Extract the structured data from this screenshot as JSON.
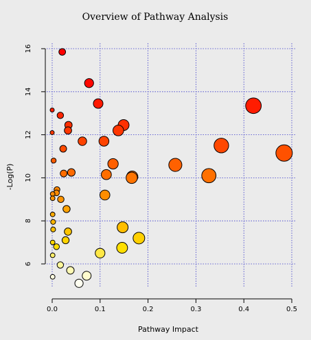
{
  "chart_data": {
    "type": "scatter",
    "title": "Overview of Pathway Analysis",
    "xlabel": "Pathway Impact",
    "ylabel": "-Log(P)",
    "xlim": [
      0,
      0.5
    ],
    "ylim": [
      4.9,
      16
    ],
    "xticks": [
      0.0,
      0.1,
      0.2,
      0.3,
      0.4,
      0.5
    ],
    "xtick_labels": [
      "0.0",
      "0.1",
      "0.2",
      "0.3",
      "0.4",
      "0.5"
    ],
    "yticks": [
      6,
      8,
      10,
      12,
      14,
      16
    ],
    "ytick_labels": [
      "6",
      "8",
      "10",
      "12",
      "14",
      "16"
    ],
    "grid": true,
    "encoding": "point size reflects pathway impact; color shades from red (high -log(p)) to white (low -log(p))",
    "points": [
      {
        "x": 0.021,
        "y": 15.85,
        "color": "#ff0000"
      },
      {
        "x": 0.077,
        "y": 14.4,
        "color": "#ff0800"
      },
      {
        "x": 0.096,
        "y": 13.45,
        "color": "#ff1900"
      },
      {
        "x": 0.42,
        "y": 13.35,
        "color": "#ff1c00"
      },
      {
        "x": 0.0,
        "y": 13.15,
        "color": "#ff1f00"
      },
      {
        "x": 0.017,
        "y": 12.9,
        "color": "#ff2500"
      },
      {
        "x": 0.034,
        "y": 12.45,
        "color": "#ff3000"
      },
      {
        "x": 0.149,
        "y": 12.45,
        "color": "#ff3000"
      },
      {
        "x": 0.033,
        "y": 12.2,
        "color": "#ff3600"
      },
      {
        "x": 0.138,
        "y": 12.2,
        "color": "#ff3600"
      },
      {
        "x": 0.0,
        "y": 12.1,
        "color": "#ff3800"
      },
      {
        "x": 0.063,
        "y": 11.7,
        "color": "#ff4300"
      },
      {
        "x": 0.108,
        "y": 11.7,
        "color": "#ff4300"
      },
      {
        "x": 0.353,
        "y": 11.5,
        "color": "#ff4800"
      },
      {
        "x": 0.023,
        "y": 11.35,
        "color": "#ff4c00"
      },
      {
        "x": 0.484,
        "y": 11.15,
        "color": "#ff5100"
      },
      {
        "x": 0.003,
        "y": 10.8,
        "color": "#ff5b00"
      },
      {
        "x": 0.127,
        "y": 10.65,
        "color": "#ff5f00"
      },
      {
        "x": 0.257,
        "y": 10.6,
        "color": "#ff6100"
      },
      {
        "x": 0.04,
        "y": 10.25,
        "color": "#ff6a00"
      },
      {
        "x": 0.024,
        "y": 10.2,
        "color": "#ff6c00"
      },
      {
        "x": 0.113,
        "y": 10.15,
        "color": "#ff6e00"
      },
      {
        "x": 0.327,
        "y": 10.1,
        "color": "#ff7000"
      },
      {
        "x": 0.167,
        "y": 10.05,
        "color": "#ff7200"
      },
      {
        "x": 0.166,
        "y": 10.0,
        "color": "#ff7400"
      },
      {
        "x": 0.01,
        "y": 9.45,
        "color": "#ff8500"
      },
      {
        "x": 0.009,
        "y": 9.3,
        "color": "#ff8a00"
      },
      {
        "x": 0.001,
        "y": 9.25,
        "color": "#ff8c00"
      },
      {
        "x": 0.11,
        "y": 9.2,
        "color": "#ff8d00"
      },
      {
        "x": 0.001,
        "y": 9.05,
        "color": "#ff9200"
      },
      {
        "x": 0.018,
        "y": 9.0,
        "color": "#ff9400"
      },
      {
        "x": 0.03,
        "y": 8.55,
        "color": "#ffa300"
      },
      {
        "x": 0.001,
        "y": 8.3,
        "color": "#ffab00"
      },
      {
        "x": 0.002,
        "y": 7.95,
        "color": "#ffb600"
      },
      {
        "x": 0.147,
        "y": 7.7,
        "color": "#ffbe00"
      },
      {
        "x": 0.002,
        "y": 7.6,
        "color": "#ffc100"
      },
      {
        "x": 0.033,
        "y": 7.5,
        "color": "#ffc500"
      },
      {
        "x": 0.181,
        "y": 7.2,
        "color": "#ffd000"
      },
      {
        "x": 0.028,
        "y": 7.1,
        "color": "#ffd300"
      },
      {
        "x": 0.001,
        "y": 7.0,
        "color": "#ffd600"
      },
      {
        "x": 0.146,
        "y": 6.75,
        "color": "#ffdf00"
      },
      {
        "x": 0.009,
        "y": 6.8,
        "color": "#ffdd00"
      },
      {
        "x": 0.1,
        "y": 6.5,
        "color": "#ffe847"
      },
      {
        "x": 0.001,
        "y": 6.4,
        "color": "#ffee6a"
      },
      {
        "x": 0.017,
        "y": 5.95,
        "color": "#fff79a"
      },
      {
        "x": 0.038,
        "y": 5.7,
        "color": "#fffab4"
      },
      {
        "x": 0.072,
        "y": 5.45,
        "color": "#fffcce"
      },
      {
        "x": 0.001,
        "y": 5.4,
        "color": "#fffde0"
      },
      {
        "x": 0.056,
        "y": 5.1,
        "color": "#fffff0"
      }
    ]
  }
}
